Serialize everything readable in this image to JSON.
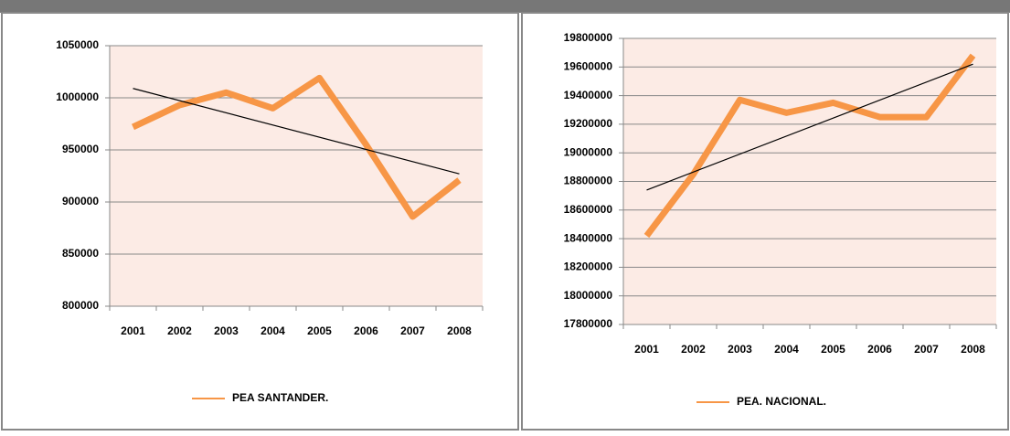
{
  "chart_data": [
    {
      "type": "line",
      "categories": [
        "2001",
        "2002",
        "2003",
        "2004",
        "2005",
        "2006",
        "2007",
        "2008"
      ],
      "series": [
        {
          "name": "PEA SANTANDER.",
          "color": "#f79646",
          "values": [
            972000,
            993000,
            1005000,
            990000,
            1019000,
            955000,
            886000,
            921000
          ]
        }
      ],
      "trendline": [
        1009000,
        927000
      ],
      "ylim": [
        800000,
        1050000
      ],
      "yticks": [
        800000,
        850000,
        900000,
        950000,
        1000000,
        1050000
      ],
      "grid": true,
      "legend": "bottom"
    },
    {
      "type": "line",
      "categories": [
        "2001",
        "2002",
        "2003",
        "2004",
        "2005",
        "2006",
        "2007",
        "2008"
      ],
      "series": [
        {
          "name": "PEA. NACIONAL.",
          "color": "#f79646",
          "values": [
            18420000,
            18850000,
            19370000,
            19280000,
            19350000,
            19250000,
            19250000,
            19680000
          ]
        }
      ],
      "trendline": [
        18740000,
        19620000
      ],
      "ylim": [
        17800000,
        19800000
      ],
      "yticks": [
        17800000,
        18000000,
        18200000,
        18400000,
        18600000,
        18800000,
        19000000,
        19200000,
        19400000,
        19600000,
        19800000
      ],
      "grid": true,
      "legend": "bottom"
    }
  ]
}
